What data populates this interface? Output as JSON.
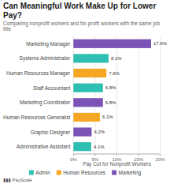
{
  "chart_data": {
    "type": "bar",
    "orientation": "horizontal",
    "title": "Can Meaningful Work Make Up for Lower Pay?",
    "subtitle": "Comparing nonprofit workers and for-profit workers with the same job title",
    "xlabel": "Pay Cut for Nonprofit Workers",
    "categories": [
      "Marketing Manager",
      "Systems Administrator",
      "Human Resources Manager",
      "Staff Accountant",
      "Marketing Coordinator",
      "Human Resources Generalist",
      "Graphic Designer",
      "Administrative Assistant"
    ],
    "values": [
      17.9,
      8.1,
      7.6,
      6.8,
      6.8,
      6.1,
      4.2,
      4.1
    ],
    "value_labels": [
      "17.9%",
      "8.1%",
      "7.6%",
      "6.8%",
      "6.8%",
      "6.1%",
      "4.2%",
      "4.1%"
    ],
    "colors": [
      "#7B52B5",
      "#2DBFB2",
      "#F5A623",
      "#2DBFB2",
      "#7B52B5",
      "#F5A623",
      "#7B52B5",
      "#2DBFB2"
    ],
    "data_labels": true,
    "xlim": [
      0,
      20
    ],
    "xticks": [
      {
        "value": 0,
        "label": "0%"
      },
      {
        "value": 5,
        "label": "5%"
      },
      {
        "value": 10,
        "label": "10%"
      },
      {
        "value": 15,
        "label": "15%"
      },
      {
        "value": 20,
        "label": "20%"
      }
    ],
    "grid": true,
    "legend": "bottom",
    "legend_entries": [
      {
        "name": "Admin",
        "color": "#2DBFB2"
      },
      {
        "name": "Human Resources",
        "color": "#F5A623"
      },
      {
        "name": "Marketing",
        "color": "#7B52B5"
      }
    ],
    "annotations": [
      "▮▮▮ PayScale"
    ]
  }
}
